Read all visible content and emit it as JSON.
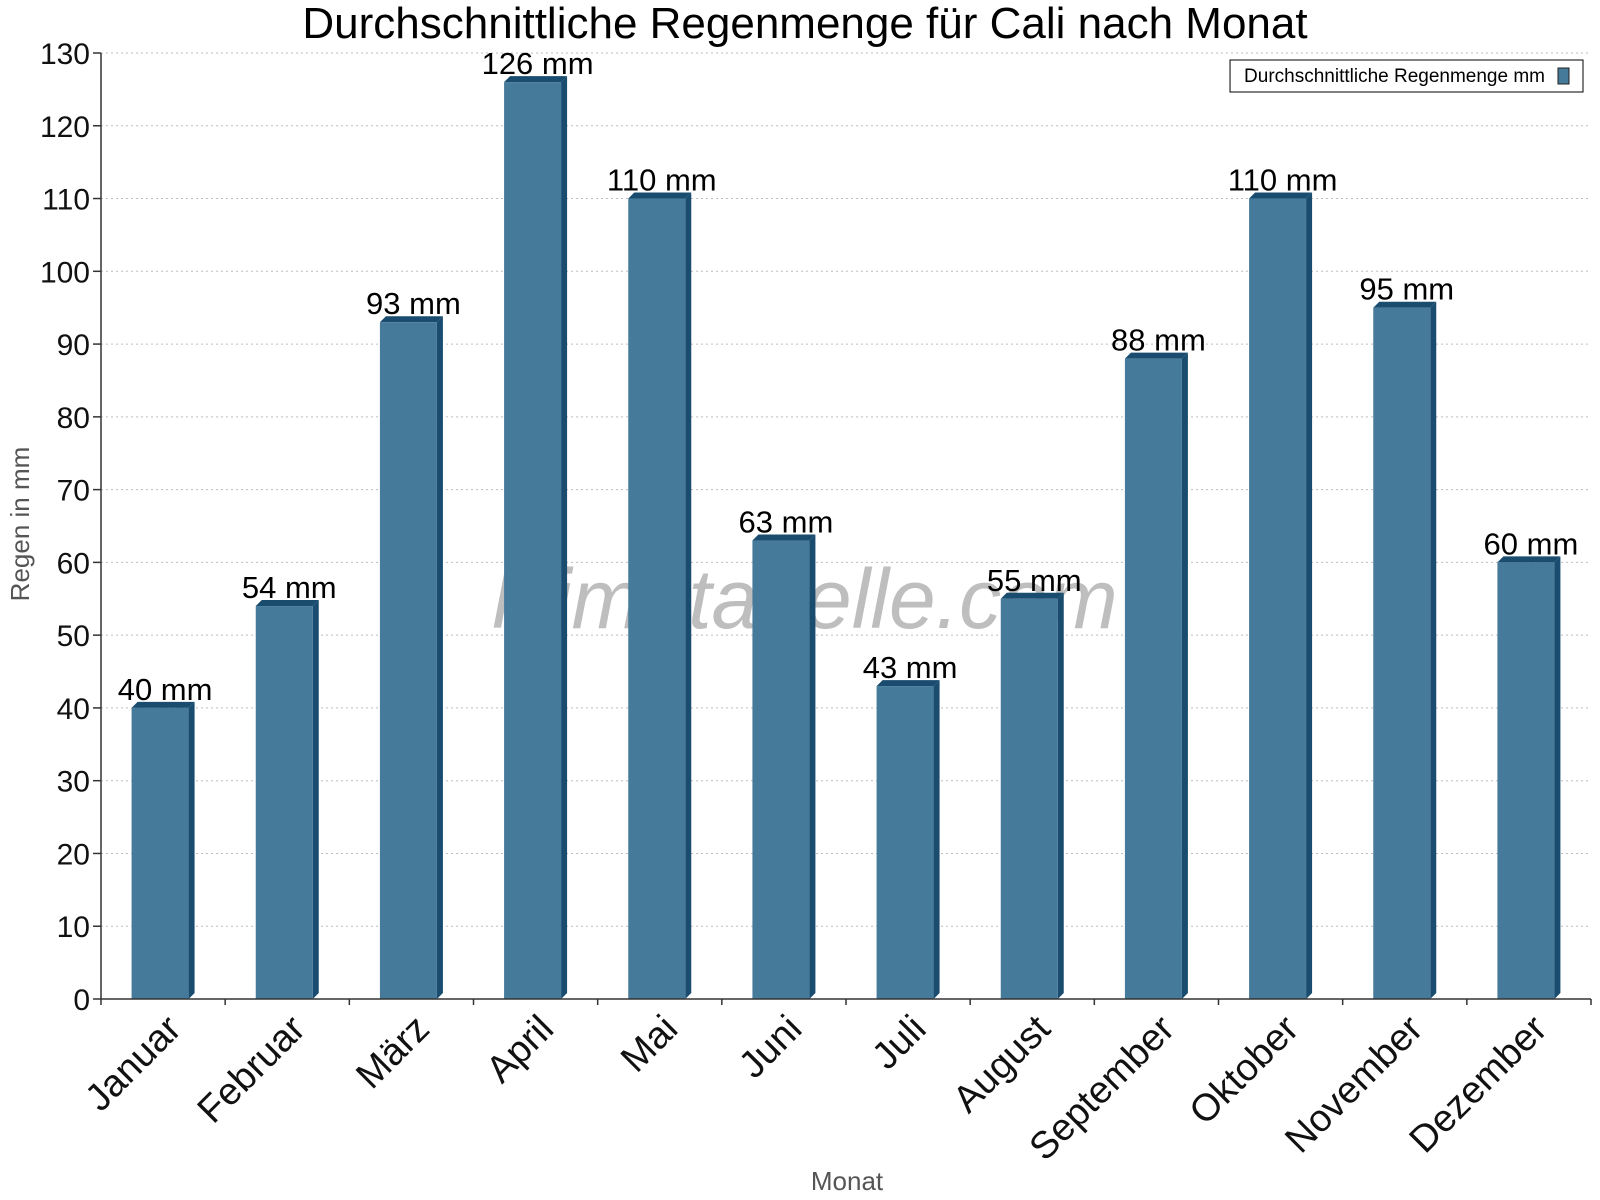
{
  "chart_data": {
    "type": "bar",
    "title": "Durchschnittliche Regenmenge für Cali nach Monat",
    "xlabel": "Monat",
    "ylabel": "Regen in mm",
    "categories": [
      "Januar",
      "Februar",
      "März",
      "April",
      "Mai",
      "Juni",
      "Juli",
      "August",
      "September",
      "Oktober",
      "November",
      "Dezember"
    ],
    "series": [
      {
        "name": "Durchschnittliche Regenmenge mm",
        "values": [
          40,
          54,
          93,
          126,
          110,
          63,
          43,
          55,
          88,
          110,
          95,
          60
        ],
        "labels": [
          "40 mm",
          "54 mm",
          "93 mm",
          "126 mm",
          "110 mm",
          "63 mm",
          "43 mm",
          "55 mm",
          "88 mm",
          "110 mm",
          "95 mm",
          "60 mm"
        ],
        "color": "#467a9b",
        "side_color": "#194c6e"
      }
    ],
    "ylim": [
      0,
      130
    ],
    "yticks": [
      0,
      10,
      20,
      30,
      40,
      50,
      60,
      70,
      80,
      90,
      100,
      110,
      120,
      130
    ],
    "grid": true,
    "legend_position": "top-right"
  },
  "watermark": "klimatabelle.com"
}
